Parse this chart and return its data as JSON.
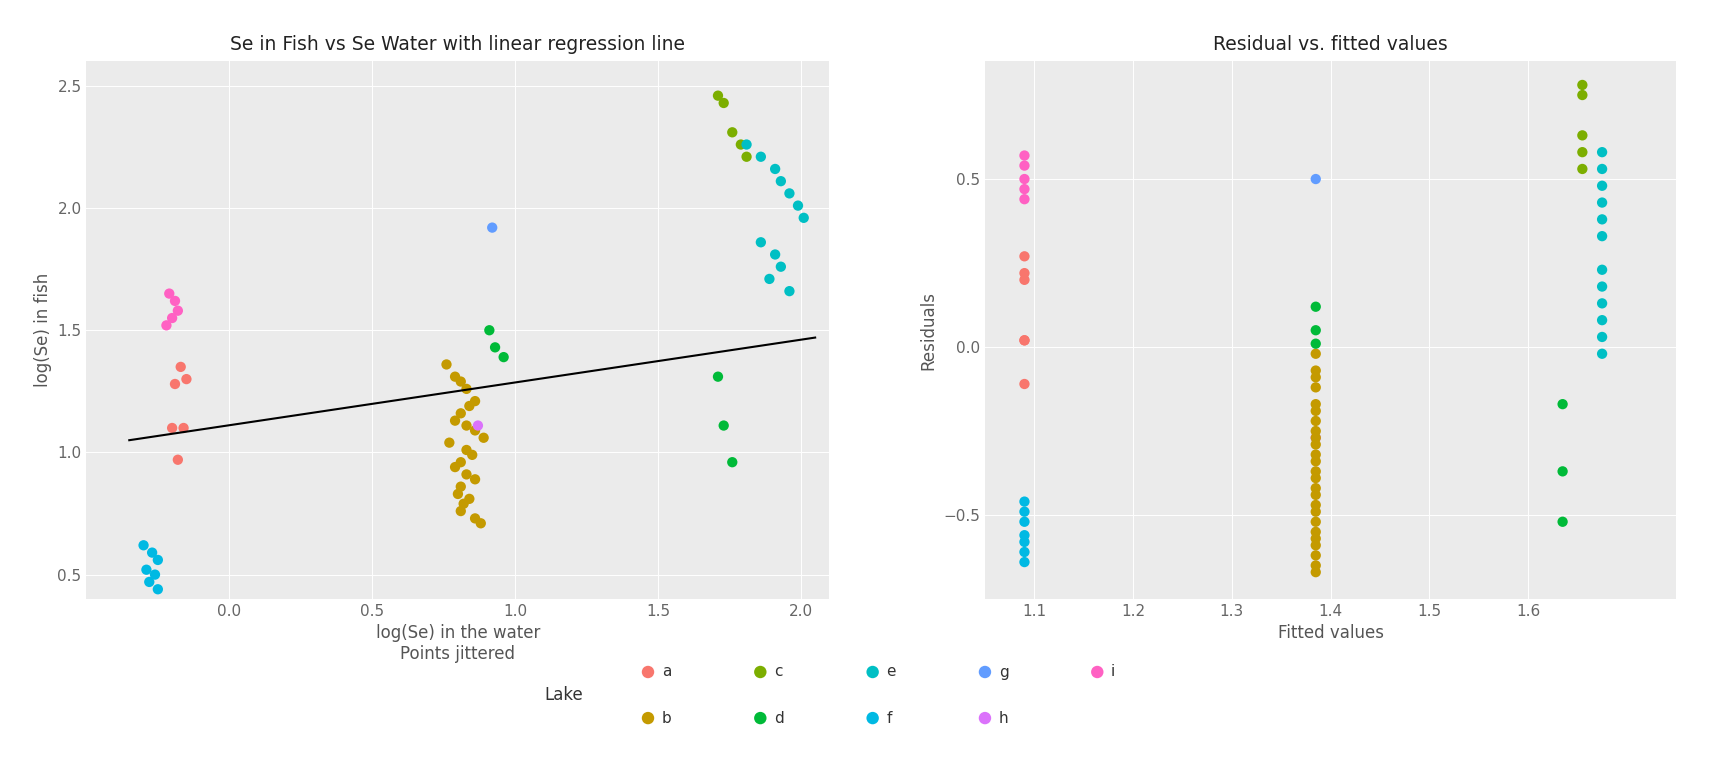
{
  "title_left": "Se in Fish vs Se Water with linear regression line",
  "title_right": "Residual vs. fitted values",
  "xlabel_left": "log(Se) in the water\nPoints jittered",
  "ylabel_left": "log(Se) in fish",
  "xlabel_right": "Fitted values",
  "ylabel_right": "Residuals",
  "lake_colors_map": {
    "a": "#F8766D",
    "b": "#C49A00",
    "c": "#7CAE00",
    "d": "#00BA38",
    "e": "#00BFC4",
    "f": "#00B9E3",
    "g": "#619CFF",
    "h": "#DB72FB",
    "i": "#FF61C3"
  },
  "regression_line": {
    "x0": -0.35,
    "x1": 2.05,
    "y0": 1.05,
    "y1": 1.47
  },
  "scatter_data": {
    "i": {
      "x": [
        -0.21,
        -0.19,
        -0.18,
        -0.2,
        -0.22
      ],
      "y": [
        1.65,
        1.62,
        1.58,
        1.55,
        1.52
      ]
    },
    "a": {
      "x": [
        -0.17,
        -0.15,
        -0.19,
        -0.16,
        -0.2,
        -0.18
      ],
      "y": [
        1.35,
        1.3,
        1.28,
        1.1,
        1.1,
        0.97
      ]
    },
    "f": {
      "x": [
        -0.3,
        -0.27,
        -0.25,
        -0.29,
        -0.26,
        -0.28,
        -0.25
      ],
      "y": [
        0.62,
        0.59,
        0.56,
        0.52,
        0.5,
        0.47,
        0.44
      ]
    },
    "b": {
      "x": [
        0.76,
        0.79,
        0.81,
        0.83,
        0.86,
        0.84,
        0.81,
        0.79,
        0.83,
        0.86,
        0.89,
        0.77,
        0.83,
        0.85,
        0.81,
        0.79,
        0.83,
        0.86,
        0.81,
        0.8,
        0.84,
        0.82,
        0.81,
        0.86,
        0.88
      ],
      "y": [
        1.36,
        1.31,
        1.29,
        1.26,
        1.21,
        1.19,
        1.16,
        1.13,
        1.11,
        1.09,
        1.06,
        1.04,
        1.01,
        0.99,
        0.96,
        0.94,
        0.91,
        0.89,
        0.86,
        0.83,
        0.81,
        0.79,
        0.76,
        0.73,
        0.71
      ]
    },
    "h": {
      "x": [
        0.87
      ],
      "y": [
        1.11
      ]
    },
    "g": {
      "x": [
        0.92
      ],
      "y": [
        1.92
      ]
    },
    "d": {
      "x": [
        0.91,
        0.93,
        0.96,
        1.71,
        1.73,
        1.76
      ],
      "y": [
        1.5,
        1.43,
        1.39,
        1.31,
        1.11,
        0.96
      ]
    },
    "c": {
      "x": [
        1.71,
        1.73,
        1.76,
        1.79,
        1.81
      ],
      "y": [
        2.46,
        2.43,
        2.31,
        2.26,
        2.21
      ]
    },
    "e": {
      "x": [
        1.81,
        1.86,
        1.91,
        1.93,
        1.96,
        1.99,
        2.01,
        1.86,
        1.91,
        1.93,
        1.89,
        1.96
      ],
      "y": [
        2.26,
        2.21,
        2.16,
        2.11,
        2.06,
        2.01,
        1.96,
        1.86,
        1.81,
        1.76,
        1.71,
        1.66
      ]
    }
  },
  "residual_data": {
    "i": {
      "x": [
        1.09,
        1.09,
        1.09,
        1.09,
        1.09
      ],
      "y": [
        0.57,
        0.54,
        0.5,
        0.47,
        0.44
      ]
    },
    "a": {
      "x": [
        1.09,
        1.09,
        1.09,
        1.09,
        1.09,
        1.09
      ],
      "y": [
        0.27,
        0.22,
        0.2,
        0.02,
        0.02,
        -0.11
      ]
    },
    "f": {
      "x": [
        1.09,
        1.09,
        1.09,
        1.09,
        1.09,
        1.09,
        1.09
      ],
      "y": [
        -0.46,
        -0.49,
        -0.52,
        -0.56,
        -0.58,
        -0.61,
        -0.64
      ]
    },
    "g": {
      "x": [
        1.385
      ],
      "y": [
        0.5
      ]
    },
    "h": {
      "x": [
        1.385
      ],
      "y": [
        -0.27
      ]
    },
    "b": {
      "x": [
        1.385,
        1.385,
        1.385,
        1.385,
        1.385,
        1.385,
        1.385,
        1.385,
        1.385,
        1.385,
        1.385,
        1.385,
        1.385,
        1.385,
        1.385,
        1.385,
        1.385,
        1.385,
        1.385,
        1.385,
        1.385,
        1.385,
        1.385,
        1.385,
        1.385
      ],
      "y": [
        -0.02,
        -0.07,
        -0.09,
        -0.12,
        -0.17,
        -0.19,
        -0.22,
        -0.25,
        -0.27,
        -0.29,
        -0.32,
        -0.34,
        -0.37,
        -0.39,
        -0.42,
        -0.44,
        -0.47,
        -0.49,
        -0.52,
        -0.55,
        -0.57,
        -0.59,
        -0.62,
        -0.65,
        -0.67
      ]
    },
    "d": {
      "x": [
        1.385,
        1.385,
        1.385,
        1.635,
        1.635,
        1.635
      ],
      "y": [
        0.12,
        0.05,
        0.01,
        -0.17,
        -0.37,
        -0.52
      ]
    },
    "c": {
      "x": [
        1.655,
        1.655,
        1.655,
        1.655,
        1.655
      ],
      "y": [
        0.78,
        0.75,
        0.63,
        0.58,
        0.53
      ]
    },
    "e": {
      "x": [
        1.675,
        1.675,
        1.675,
        1.675,
        1.675,
        1.675,
        1.675,
        1.675,
        1.675,
        1.675,
        1.675,
        1.675
      ],
      "y": [
        0.58,
        0.53,
        0.48,
        0.43,
        0.38,
        0.33,
        0.23,
        0.18,
        0.13,
        0.08,
        0.03,
        -0.02
      ]
    }
  },
  "xlim_left": [
    -0.5,
    2.1
  ],
  "ylim_left": [
    0.4,
    2.6
  ],
  "xlim_right": [
    1.05,
    1.75
  ],
  "ylim_right": [
    -0.75,
    0.85
  ],
  "xticks_left": [
    -0.0,
    0.5,
    1.0,
    1.5,
    2.0
  ],
  "yticks_left": [
    0.5,
    1.0,
    1.5,
    2.0,
    2.5
  ],
  "xticks_right": [
    1.1,
    1.2,
    1.3,
    1.4,
    1.5,
    1.6
  ],
  "yticks_right": [
    -0.5,
    0.0,
    0.5
  ],
  "background_color": "#EBEBEB",
  "grid_color": "#FFFFFF",
  "marker_size": 55
}
